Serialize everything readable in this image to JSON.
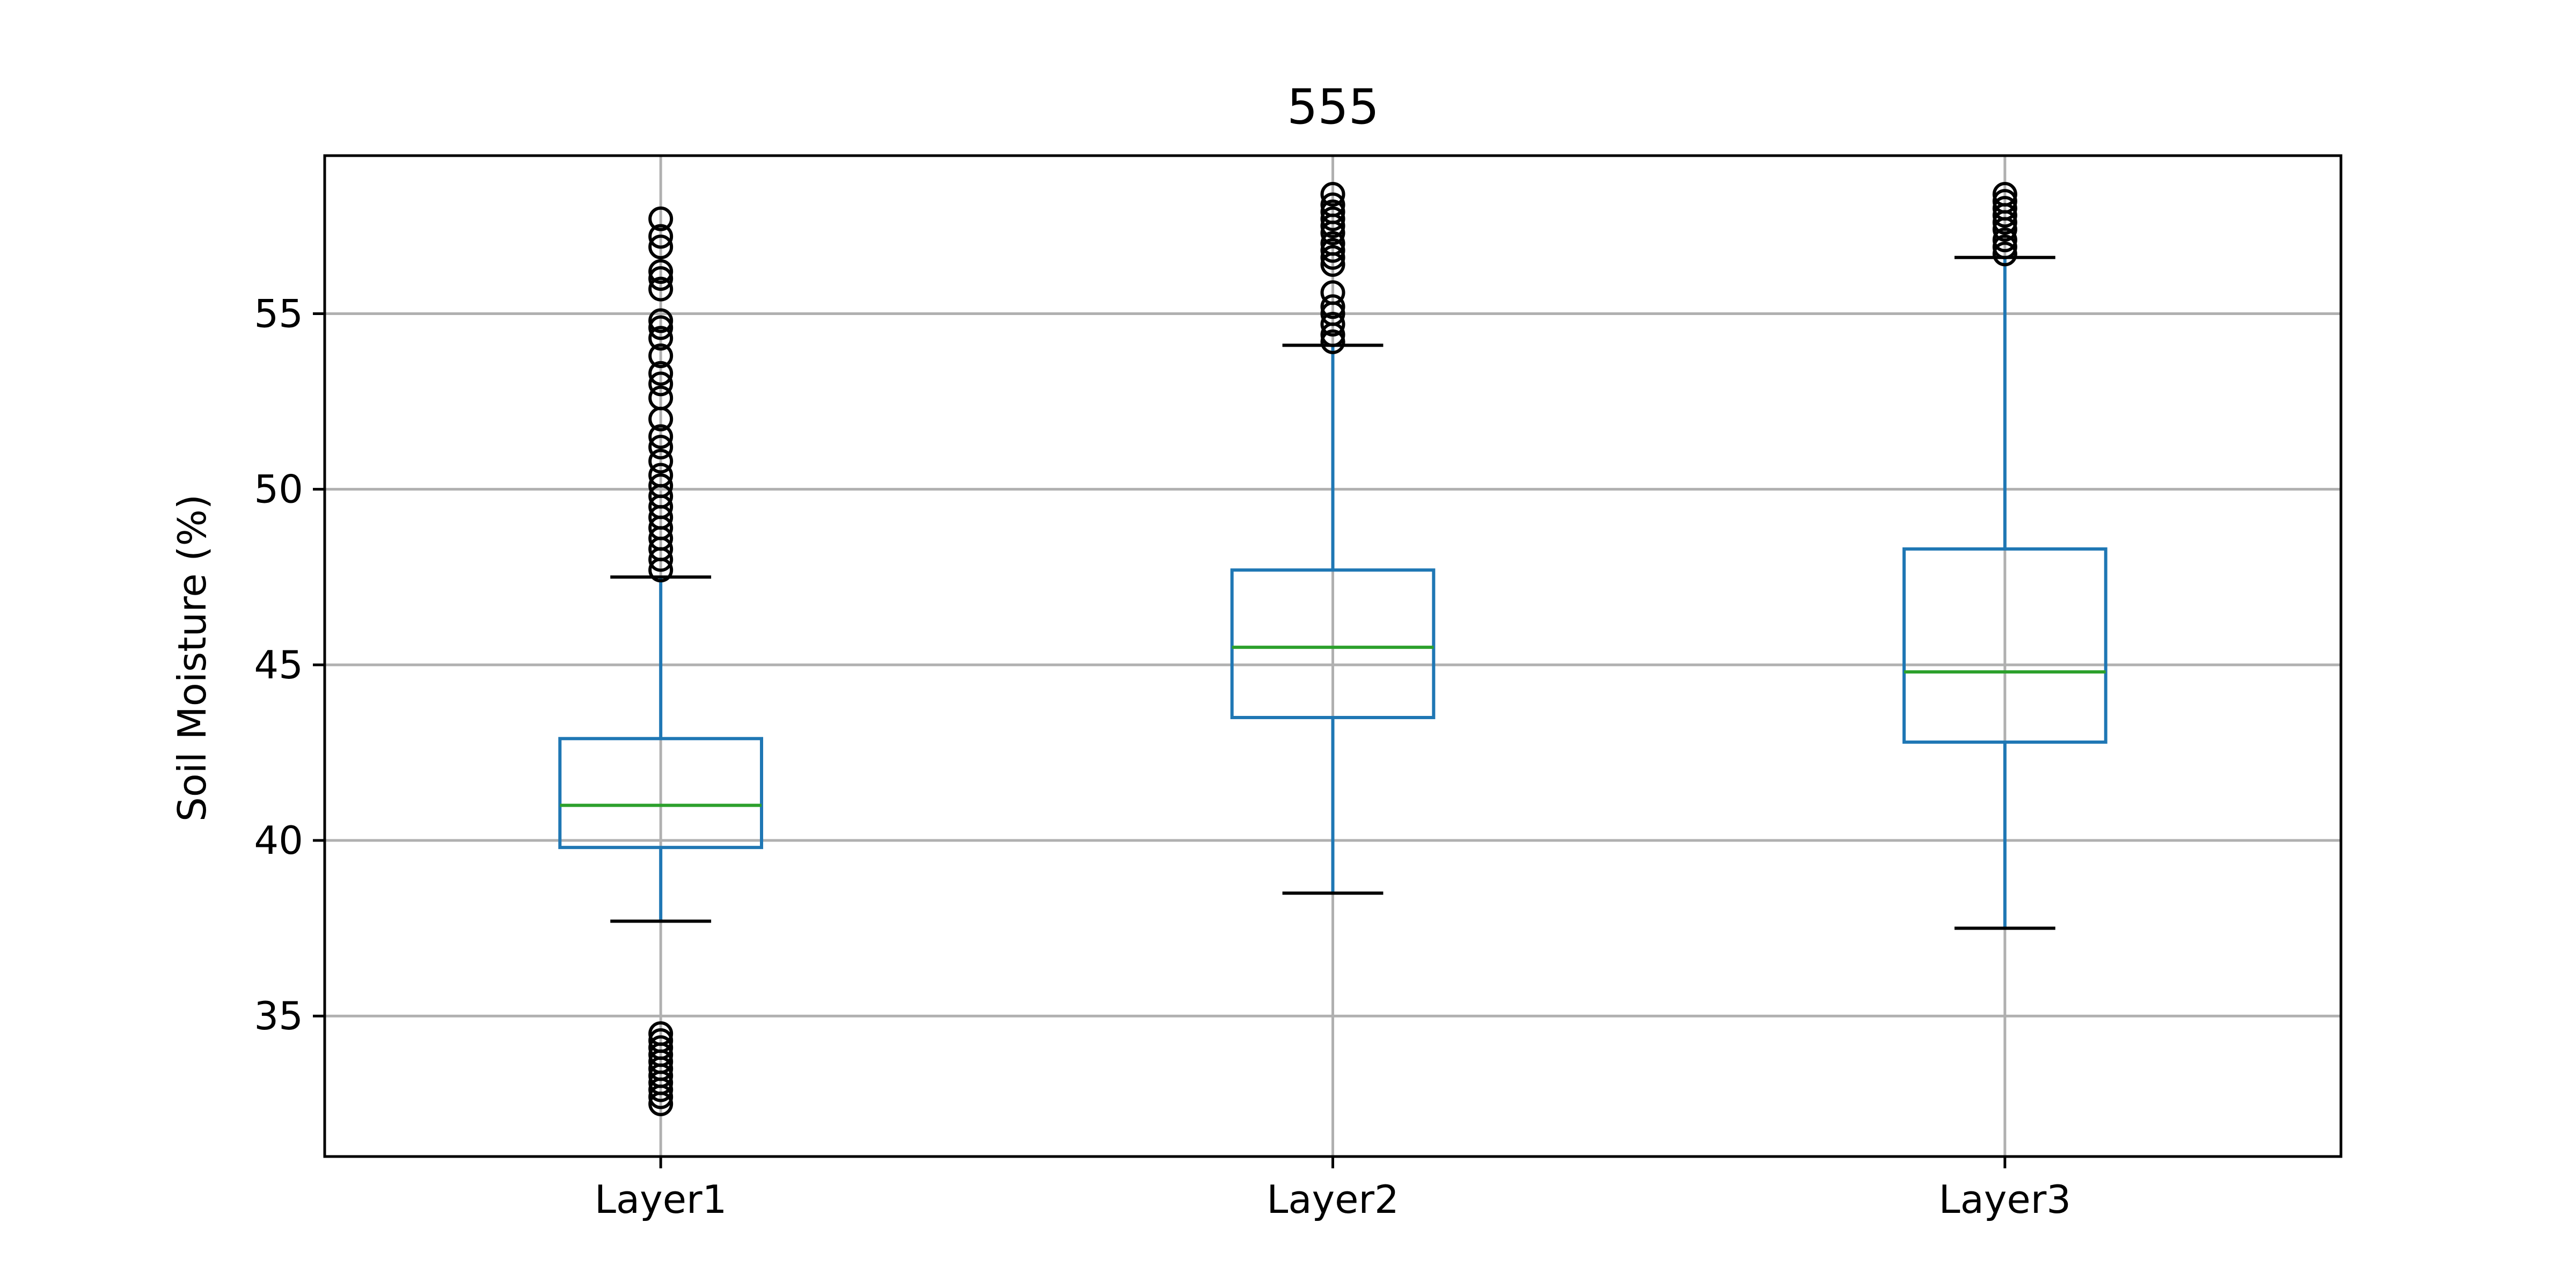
{
  "chart_data": {
    "type": "box",
    "title": "555",
    "xlabel": "",
    "ylabel": "Soil Moisture (%)",
    "ylim": [
      31.0,
      59.5
    ],
    "yticks": [
      35,
      40,
      45,
      50,
      55
    ],
    "grid": true,
    "colors": {
      "box": "#1f77b4",
      "median": "#2ca02c",
      "whisker": "#1f77b4",
      "cap": "#000000",
      "flier": "#000000",
      "grid": "#b0b0b0",
      "frame": "#000000"
    },
    "categories": [
      "Layer1",
      "Layer2",
      "Layer3"
    ],
    "series": [
      {
        "category": "Layer1",
        "whisker_low": 37.7,
        "q1": 39.8,
        "median": 41.0,
        "q3": 42.9,
        "whisker_high": 47.5,
        "fliers": [
          32.5,
          32.7,
          32.9,
          33.1,
          33.3,
          33.5,
          33.7,
          33.9,
          34.1,
          34.3,
          34.5,
          47.7,
          48.0,
          48.3,
          48.6,
          48.9,
          49.2,
          49.5,
          49.8,
          50.1,
          50.4,
          50.8,
          51.2,
          51.5,
          52.0,
          52.6,
          53.0,
          53.3,
          53.8,
          54.3,
          54.6,
          54.8,
          55.7,
          56.0,
          56.2,
          56.9,
          57.2,
          57.7
        ]
      },
      {
        "category": "Layer2",
        "whisker_low": 38.5,
        "q1": 43.5,
        "median": 45.5,
        "q3": 47.7,
        "whisker_high": 54.1,
        "fliers": [
          54.2,
          54.4,
          54.7,
          55.0,
          55.2,
          55.6,
          56.4,
          56.6,
          56.8,
          57.0,
          57.3,
          57.5,
          57.7,
          57.9,
          58.1,
          58.4
        ]
      },
      {
        "category": "Layer3",
        "whisker_low": 37.5,
        "q1": 42.8,
        "median": 44.8,
        "q3": 48.3,
        "whisker_high": 56.6,
        "fliers": [
          56.7,
          56.9,
          57.1,
          57.4,
          57.6,
          57.8,
          58.0,
          58.2,
          58.4
        ]
      }
    ]
  }
}
